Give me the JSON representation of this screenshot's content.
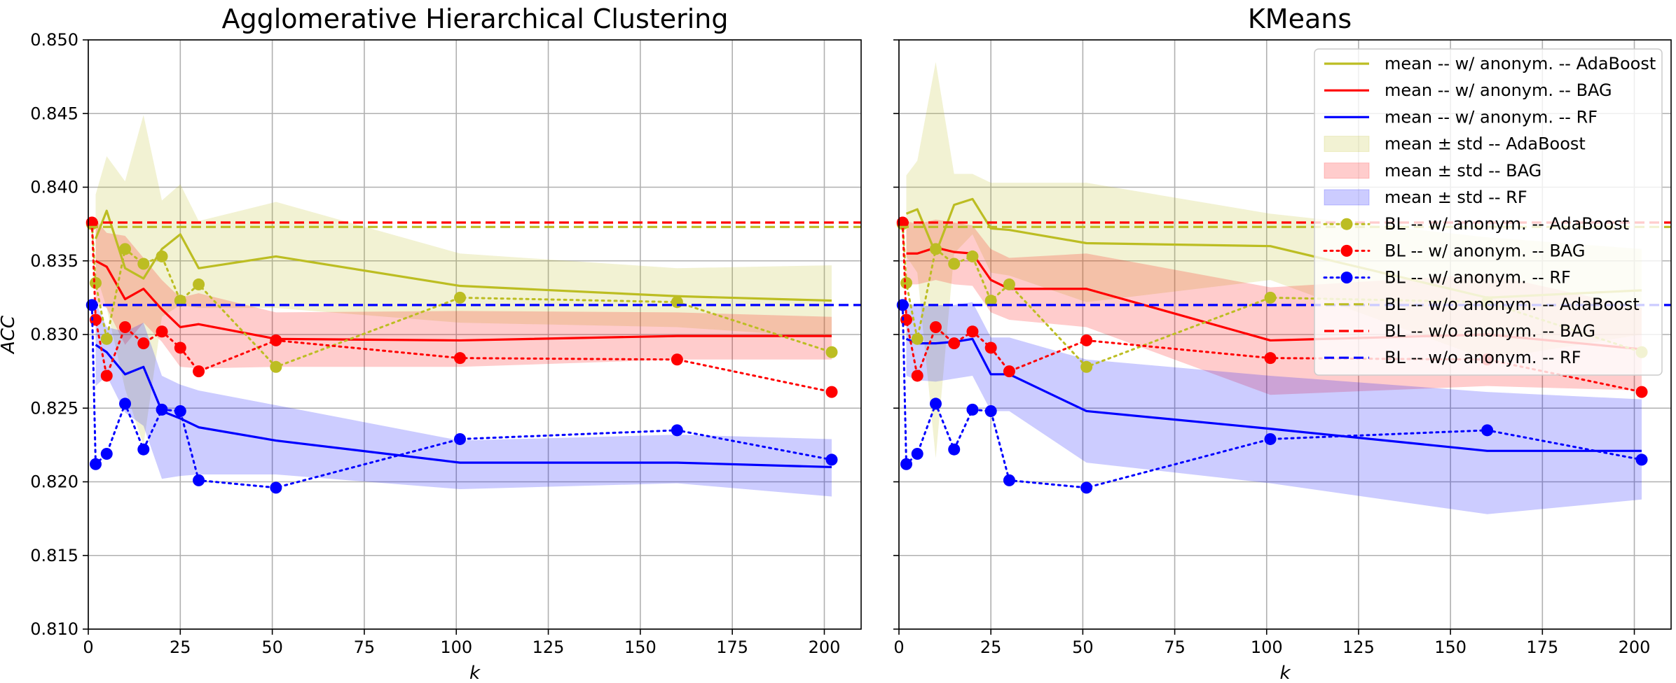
{
  "chart_data": [
    {
      "type": "line",
      "title": "Agglomerative Hierarchical Clustering",
      "xlabel": "k",
      "ylabel": "ACC",
      "xlim": [
        0,
        210
      ],
      "ylim": [
        0.81,
        0.85
      ],
      "xticks": [
        0,
        25,
        50,
        75,
        100,
        125,
        150,
        175,
        200
      ],
      "yticks": [
        "0.810",
        "0.815",
        "0.820",
        "0.825",
        "0.830",
        "0.835",
        "0.840",
        "0.845",
        "0.850"
      ],
      "grid": true,
      "series": [
        {
          "name": "mean -- w/ anonym. -- AdaBoost",
          "kind": "mean",
          "color": "#bcbd22",
          "x": [
            2,
            5,
            10,
            15,
            20,
            25,
            30,
            51,
            101,
            160,
            202
          ],
          "values": [
            0.8365,
            0.8384,
            0.8345,
            0.8338,
            0.8358,
            0.8368,
            0.8345,
            0.8353,
            0.8333,
            0.8326,
            0.8323
          ]
        },
        {
          "name": "mean -- w/ anonym. -- BAG",
          "kind": "mean",
          "color": "#ff0000",
          "x": [
            2,
            5,
            10,
            15,
            20,
            25,
            30,
            51,
            101,
            160,
            202
          ],
          "values": [
            0.835,
            0.8346,
            0.8324,
            0.8331,
            0.8317,
            0.8305,
            0.8307,
            0.8297,
            0.8296,
            0.8299,
            0.8299
          ]
        },
        {
          "name": "mean -- w/ anonym. -- RF",
          "kind": "mean",
          "color": "#0000ff",
          "x": [
            2,
            5,
            10,
            15,
            20,
            25,
            30,
            51,
            101,
            160,
            202
          ],
          "values": [
            0.8293,
            0.8288,
            0.8273,
            0.8278,
            0.8248,
            0.8243,
            0.8237,
            0.8228,
            0.8213,
            0.8213,
            0.821
          ]
        },
        {
          "name": "mean ± std -- AdaBoost",
          "kind": "band",
          "color": "#bcbd22",
          "x": [
            2,
            5,
            10,
            15,
            20,
            25,
            30,
            51,
            101,
            160,
            202
          ],
          "upper": [
            0.8395,
            0.8421,
            0.8404,
            0.8449,
            0.8391,
            0.8402,
            0.8377,
            0.839,
            0.8355,
            0.8345,
            0.8347
          ],
          "lower": [
            0.8342,
            0.8318,
            0.8263,
            0.8225,
            0.8312,
            0.832,
            0.8318,
            0.8318,
            0.8308,
            0.8305,
            0.8298
          ]
        },
        {
          "name": "mean ± std -- BAG",
          "kind": "band",
          "color": "#ff0000",
          "x": [
            2,
            5,
            10,
            15,
            20,
            25,
            30,
            51,
            101,
            160,
            202
          ],
          "upper": [
            0.8378,
            0.8369,
            0.8367,
            0.8352,
            0.8337,
            0.8325,
            0.8328,
            0.8315,
            0.8316,
            0.8315,
            0.8312
          ],
          "lower": [
            0.8322,
            0.8318,
            0.8293,
            0.8308,
            0.8295,
            0.8278,
            0.8277,
            0.8278,
            0.8278,
            0.8283,
            0.8283
          ]
        },
        {
          "name": "mean ± std -- RF",
          "kind": "band",
          "color": "#0000ff",
          "x": [
            2,
            5,
            10,
            15,
            20,
            25,
            30,
            51,
            101,
            160,
            202
          ],
          "upper": [
            0.8322,
            0.8305,
            0.8302,
            0.8308,
            0.8272,
            0.8266,
            0.8262,
            0.8252,
            0.8228,
            0.8232,
            0.8229
          ],
          "lower": [
            0.8265,
            0.8272,
            0.8247,
            0.8238,
            0.8202,
            0.8204,
            0.8205,
            0.8205,
            0.8195,
            0.8199,
            0.819
          ]
        },
        {
          "name": "BL -- w/ anonym. -- AdaBoost",
          "kind": "baseline",
          "color": "#bcbd22",
          "x": [
            1,
            2,
            5,
            10,
            15,
            20,
            25,
            30,
            51,
            101,
            160,
            202
          ],
          "values": [
            0.8375,
            0.8335,
            0.8297,
            0.8358,
            0.8348,
            0.8353,
            0.8323,
            0.8334,
            0.8278,
            0.8325,
            0.8322,
            0.8288
          ]
        },
        {
          "name": "BL -- w/ anonym. -- BAG",
          "kind": "baseline",
          "color": "#ff0000",
          "x": [
            1,
            2,
            5,
            10,
            15,
            20,
            25,
            30,
            51,
            101,
            160,
            202
          ],
          "values": [
            0.8376,
            0.831,
            0.8272,
            0.8305,
            0.8294,
            0.8302,
            0.8291,
            0.8275,
            0.8296,
            0.8284,
            0.8283,
            0.8261
          ]
        },
        {
          "name": "BL -- w/ anonym. -- RF",
          "kind": "baseline",
          "color": "#0000ff",
          "x": [
            1,
            2,
            5,
            10,
            15,
            20,
            25,
            30,
            51,
            101,
            160,
            202
          ],
          "values": [
            0.832,
            0.8212,
            0.8219,
            0.8253,
            0.8222,
            0.8249,
            0.8248,
            0.8201,
            0.8196,
            0.8229,
            0.8235,
            0.8215
          ]
        },
        {
          "name": "BL -- w/o anonym. -- AdaBoost",
          "kind": "hline",
          "color": "#bcbd22",
          "value": 0.8373
        },
        {
          "name": "BL -- w/o anonym. -- BAG",
          "kind": "hline",
          "color": "#ff0000",
          "value": 0.8376
        },
        {
          "name": "BL -- w/o anonym. -- RF",
          "kind": "hline",
          "color": "#0000ff",
          "value": 0.832
        }
      ]
    },
    {
      "type": "line",
      "title": "KMeans",
      "xlabel": "k",
      "ylabel": "",
      "xlim": [
        0,
        210
      ],
      "ylim": [
        0.81,
        0.85
      ],
      "xticks": [
        0,
        25,
        50,
        75,
        100,
        125,
        150,
        175,
        200
      ],
      "grid": true,
      "legend": "top-right",
      "series": [
        {
          "name": "mean -- w/ anonym. -- AdaBoost",
          "kind": "mean",
          "color": "#bcbd22",
          "x": [
            2,
            5,
            10,
            15,
            20,
            25,
            30,
            51,
            101,
            160,
            202
          ],
          "values": [
            0.8382,
            0.8385,
            0.8355,
            0.8388,
            0.8392,
            0.8372,
            0.8371,
            0.8362,
            0.836,
            0.8325,
            0.833
          ]
        },
        {
          "name": "mean -- w/ anonym. -- BAG",
          "kind": "mean",
          "color": "#ff0000",
          "x": [
            2,
            5,
            10,
            15,
            20,
            25,
            30,
            51,
            101,
            160,
            202
          ],
          "values": [
            0.8355,
            0.8355,
            0.8359,
            0.8356,
            0.8355,
            0.8337,
            0.8331,
            0.8331,
            0.8296,
            0.83,
            0.829
          ]
        },
        {
          "name": "mean -- w/ anonym. -- RF",
          "kind": "mean",
          "color": "#0000ff",
          "x": [
            2,
            5,
            10,
            15,
            20,
            25,
            30,
            51,
            101,
            160,
            202
          ],
          "values": [
            0.8297,
            0.8294,
            0.8294,
            0.8295,
            0.8297,
            0.8273,
            0.8273,
            0.8248,
            0.8236,
            0.8221,
            0.8221
          ]
        },
        {
          "name": "mean ± std -- AdaBoost",
          "kind": "band",
          "color": "#bcbd22",
          "x": [
            2,
            5,
            10,
            15,
            20,
            25,
            30,
            51,
            101,
            160,
            202
          ],
          "upper": [
            0.8408,
            0.8418,
            0.8485,
            0.8409,
            0.8409,
            0.8403,
            0.8403,
            0.8403,
            0.8382,
            0.8366,
            0.8358
          ],
          "lower": [
            0.8353,
            0.8342,
            0.8216,
            0.8355,
            0.8368,
            0.8342,
            0.834,
            0.8322,
            0.8337,
            0.8283,
            0.83
          ]
        },
        {
          "name": "mean ± std -- BAG",
          "kind": "band",
          "color": "#ff0000",
          "x": [
            2,
            5,
            10,
            15,
            20,
            25,
            30,
            51,
            101,
            160,
            202
          ],
          "upper": [
            0.8377,
            0.8375,
            0.8378,
            0.8376,
            0.8374,
            0.8358,
            0.8352,
            0.8355,
            0.8332,
            0.8341,
            0.8318
          ],
          "lower": [
            0.8334,
            0.8334,
            0.8337,
            0.8334,
            0.8333,
            0.8315,
            0.831,
            0.8305,
            0.8259,
            0.8265,
            0.8262
          ]
        },
        {
          "name": "mean ± std -- RF",
          "kind": "band",
          "color": "#0000ff",
          "x": [
            2,
            5,
            10,
            15,
            20,
            25,
            30,
            51,
            101,
            160,
            202
          ],
          "upper": [
            0.8322,
            0.8319,
            0.832,
            0.832,
            0.8322,
            0.8298,
            0.8298,
            0.8283,
            0.8272,
            0.8261,
            0.8256
          ],
          "lower": [
            0.8272,
            0.8269,
            0.8268,
            0.827,
            0.8272,
            0.8248,
            0.8248,
            0.8213,
            0.8199,
            0.8178,
            0.8188
          ]
        },
        {
          "name": "BL -- w/ anonym. -- AdaBoost",
          "kind": "baseline",
          "color": "#bcbd22",
          "x": [
            1,
            2,
            5,
            10,
            15,
            20,
            25,
            30,
            51,
            101,
            160,
            202
          ],
          "values": [
            0.8375,
            0.8335,
            0.8297,
            0.8358,
            0.8348,
            0.8353,
            0.8323,
            0.8334,
            0.8278,
            0.8325,
            0.8322,
            0.8288
          ]
        },
        {
          "name": "BL -- w/ anonym. -- BAG",
          "kind": "baseline",
          "color": "#ff0000",
          "x": [
            1,
            2,
            5,
            10,
            15,
            20,
            25,
            30,
            51,
            101,
            160,
            202
          ],
          "values": [
            0.8376,
            0.831,
            0.8272,
            0.8305,
            0.8294,
            0.8302,
            0.8291,
            0.8275,
            0.8296,
            0.8284,
            0.8283,
            0.8261
          ]
        },
        {
          "name": "BL -- w/ anonym. -- RF",
          "kind": "baseline",
          "color": "#0000ff",
          "x": [
            1,
            2,
            5,
            10,
            15,
            20,
            25,
            30,
            51,
            101,
            160,
            202
          ],
          "values": [
            0.832,
            0.8212,
            0.8219,
            0.8253,
            0.8222,
            0.8249,
            0.8248,
            0.8201,
            0.8196,
            0.8229,
            0.8235,
            0.8215
          ]
        },
        {
          "name": "BL -- w/o anonym. -- AdaBoost",
          "kind": "hline",
          "color": "#bcbd22",
          "value": 0.8373
        },
        {
          "name": "BL -- w/o anonym. -- BAG",
          "kind": "hline",
          "color": "#ff0000",
          "value": 0.8376
        },
        {
          "name": "BL -- w/o anonym. -- RF",
          "kind": "hline",
          "color": "#0000ff",
          "value": 0.832
        }
      ]
    }
  ]
}
